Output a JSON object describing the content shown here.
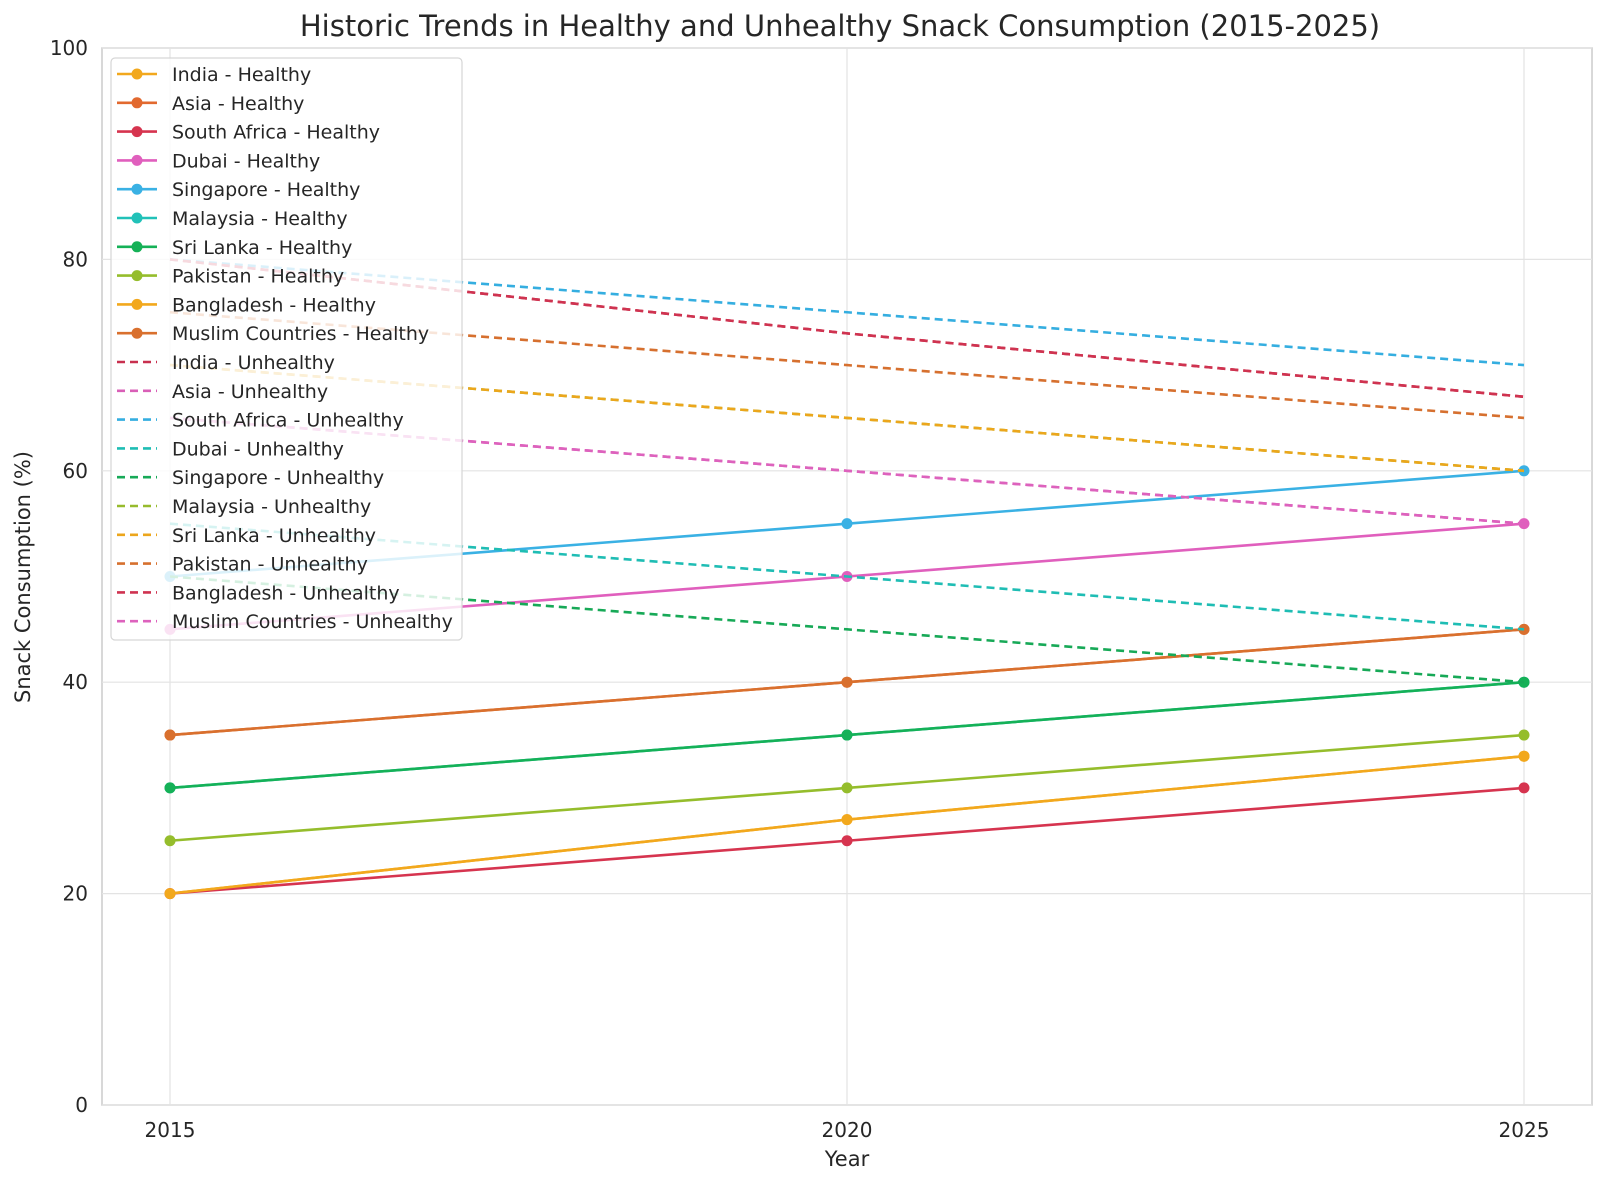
{
  "chart_data": {
    "type": "line",
    "title": "Historic Trends in Healthy and Unhealthy Snack Consumption (2015-2025)",
    "xlabel": "Year",
    "ylabel": "Snack Consumption (%)",
    "x": [
      2015,
      2020,
      2025
    ],
    "x_tick_labels": [
      "2015",
      "2020",
      "2025"
    ],
    "ylim": [
      0,
      100
    ],
    "y_ticks": [
      0,
      20,
      40,
      60,
      80,
      100
    ],
    "grid": true,
    "legend_position": "top-left",
    "series": [
      {
        "name": "India - Healthy",
        "style": "solid",
        "markers": true,
        "color": "#f2a81d",
        "values": [
          20,
          27,
          33
        ]
      },
      {
        "name": "Asia - Healthy",
        "style": "solid",
        "markers": true,
        "color": "#e2692f",
        "values": [
          35,
          40,
          45
        ]
      },
      {
        "name": "South Africa - Healthy",
        "style": "solid",
        "markers": true,
        "color": "#d6344f",
        "values": [
          20,
          25,
          30
        ]
      },
      {
        "name": "Dubai - Healthy",
        "style": "solid",
        "markers": true,
        "color": "#e05fbd",
        "values": [
          45,
          50,
          55
        ]
      },
      {
        "name": "Singapore - Healthy",
        "style": "solid",
        "markers": true,
        "color": "#3ab1e4",
        "values": [
          50,
          55,
          60
        ]
      },
      {
        "name": "Malaysia - Healthy",
        "style": "solid",
        "markers": true,
        "color": "#21c1b8",
        "values": [
          30,
          35,
          40
        ]
      },
      {
        "name": "Sri Lanka - Healthy",
        "style": "solid",
        "markers": true,
        "color": "#15b157",
        "values": [
          30,
          35,
          40
        ]
      },
      {
        "name": "Pakistan - Healthy",
        "style": "solid",
        "markers": true,
        "color": "#95bd2c",
        "values": [
          25,
          30,
          35
        ]
      },
      {
        "name": "Bangladesh - Healthy",
        "style": "solid",
        "markers": true,
        "color": "#f2a81d",
        "values": [
          20,
          27,
          33
        ]
      },
      {
        "name": "Muslim Countries - Healthy",
        "style": "solid",
        "markers": true,
        "color": "#d9702e",
        "values": [
          35,
          40,
          45
        ]
      },
      {
        "name": "India - Unhealthy",
        "style": "dashed",
        "markers": false,
        "color": "#c8304f",
        "values": [
          80,
          73,
          67
        ]
      },
      {
        "name": "Asia - Unhealthy",
        "style": "dashed",
        "markers": false,
        "color": "#d95fb7",
        "values": [
          65,
          60,
          55
        ]
      },
      {
        "name": "South Africa - Unhealthy",
        "style": "dashed",
        "markers": false,
        "color": "#35aee0",
        "values": [
          80,
          75,
          70
        ]
      },
      {
        "name": "Dubai - Unhealthy",
        "style": "dashed",
        "markers": false,
        "color": "#1fbdb4",
        "values": [
          55,
          50,
          45
        ]
      },
      {
        "name": "Singapore - Unhealthy",
        "style": "dashed",
        "markers": false,
        "color": "#17a957",
        "values": [
          50,
          45,
          40
        ]
      },
      {
        "name": "Malaysia - Unhealthy",
        "style": "dashed",
        "markers": false,
        "color": "#97bb2d",
        "values": [
          70,
          65,
          60
        ]
      },
      {
        "name": "Sri Lanka - Unhealthy",
        "style": "dashed",
        "markers": false,
        "color": "#eca61c",
        "values": [
          70,
          65,
          60
        ]
      },
      {
        "name": "Pakistan - Unhealthy",
        "style": "dashed",
        "markers": false,
        "color": "#d6702f",
        "values": [
          75,
          70,
          65
        ]
      },
      {
        "name": "Bangladesh - Unhealthy",
        "style": "dashed",
        "markers": false,
        "color": "#cf3350",
        "values": [
          80,
          73,
          67
        ]
      },
      {
        "name": "Muslim Countries - Unhealthy",
        "style": "dashed",
        "markers": false,
        "color": "#dd62bd",
        "values": [
          65,
          60,
          55
        ]
      }
    ]
  }
}
